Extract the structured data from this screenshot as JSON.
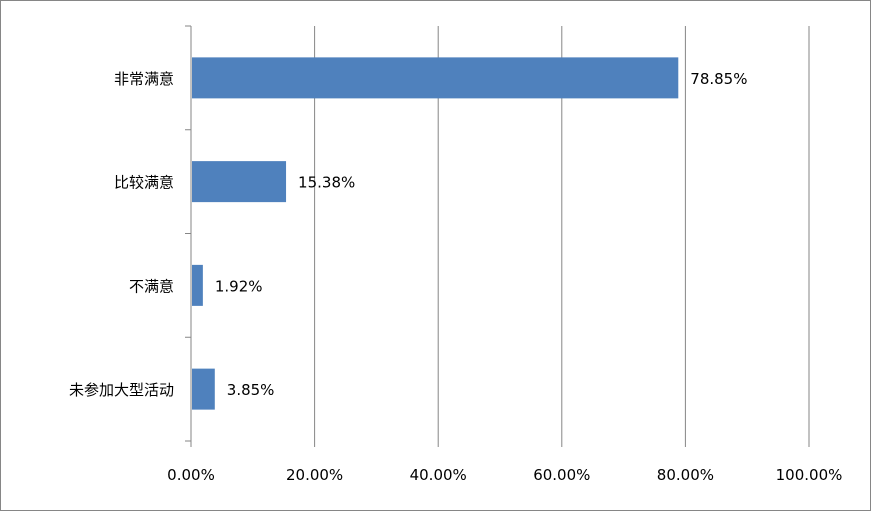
{
  "colors": {
    "bar": "#4f81bd",
    "gridline": "#868686",
    "axis": "#868686",
    "text": "#000000"
  },
  "chart_data": {
    "type": "bar",
    "orientation": "horizontal",
    "categories": [
      "非常满意",
      "比较满意",
      "不满意",
      "未参加大型活动"
    ],
    "values": [
      78.85,
      15.38,
      1.92,
      3.85
    ],
    "data_labels": [
      "78.85%",
      "15.38%",
      "1.92%",
      "3.85%"
    ],
    "xlim": [
      0,
      100
    ],
    "x_ticks": [
      0,
      20,
      40,
      60,
      80,
      100
    ],
    "x_tick_labels": [
      "0.00%",
      "20.00%",
      "40.00%",
      "60.00%",
      "80.00%",
      "100.00%"
    ],
    "grid": true,
    "legend": "none"
  }
}
